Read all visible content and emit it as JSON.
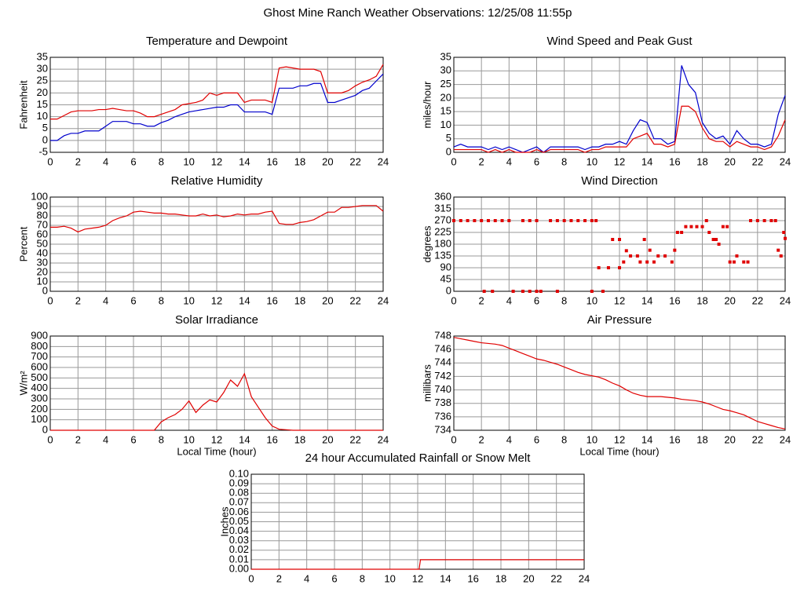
{
  "title": "Ghost Mine Ranch Weather Observations: 12/25/08 11:55p",
  "chart_data": [
    {
      "type": "line",
      "title": "Temperature and Dewpoint",
      "ylabel": "Fahrenheit",
      "grid": true,
      "x": [
        0,
        0.5,
        1,
        1.5,
        2,
        2.5,
        3,
        3.5,
        4,
        4.5,
        5,
        5.5,
        6,
        6.5,
        7,
        7.5,
        8,
        8.5,
        9,
        9.5,
        10,
        10.5,
        11,
        11.5,
        12,
        12.5,
        13,
        13.5,
        14,
        14.5,
        15,
        15.5,
        16,
        16.5,
        17,
        17.5,
        18,
        18.5,
        19,
        19.5,
        20,
        20.5,
        21,
        21.5,
        22,
        22.5,
        23,
        23.5,
        24
      ],
      "series": [
        {
          "color": "#e00000",
          "values": [
            9,
            9,
            10.5,
            12,
            12.5,
            12.5,
            12.5,
            13,
            13,
            13.5,
            13,
            12.5,
            12.5,
            11.5,
            10,
            10,
            11,
            12,
            13,
            15,
            15.5,
            16,
            17,
            20,
            19,
            20,
            20,
            20,
            16,
            17,
            17,
            17,
            16,
            30.5,
            31,
            30.5,
            30,
            30,
            30,
            29,
            20,
            20,
            20,
            21,
            23,
            24.5,
            25.5,
            27,
            32
          ]
        },
        {
          "color": "#0000cc",
          "values": [
            0,
            0,
            2,
            3,
            3,
            4,
            4,
            4,
            6,
            8,
            8,
            8,
            7,
            7,
            6,
            6,
            7.5,
            8.5,
            10,
            11,
            12,
            12.5,
            13,
            13.5,
            14,
            14,
            15,
            15,
            12,
            12,
            12,
            12,
            11,
            22,
            22,
            22,
            23,
            23,
            24,
            24,
            16,
            16,
            17,
            18,
            19,
            21,
            22,
            25,
            28
          ]
        }
      ],
      "xlim": [
        0,
        24
      ],
      "xticks": [
        0,
        2,
        4,
        6,
        8,
        10,
        12,
        14,
        16,
        18,
        20,
        22,
        24
      ],
      "ylim": [
        -5,
        35
      ],
      "yticks": [
        -5,
        0,
        5,
        10,
        15,
        20,
        25,
        30,
        35
      ]
    },
    {
      "type": "line",
      "title": "Wind Speed and Peak Gust",
      "ylabel": "miles/hour",
      "grid": true,
      "x": [
        0,
        0.5,
        1,
        1.5,
        2,
        2.5,
        3,
        3.5,
        4,
        4.5,
        5,
        5.5,
        6,
        6.5,
        7,
        7.5,
        8,
        8.5,
        9,
        9.5,
        10,
        10.5,
        11,
        11.5,
        12,
        12.5,
        13,
        13.5,
        14,
        14.5,
        15,
        15.5,
        16,
        16.5,
        17,
        17.5,
        18,
        18.5,
        19,
        19.5,
        20,
        20.5,
        21,
        21.5,
        22,
        22.5,
        23,
        23.5,
        24
      ],
      "series": [
        {
          "color": "#0000cc",
          "values": [
            2,
            3,
            2,
            2,
            2,
            1,
            2,
            1,
            2,
            1,
            0,
            1,
            2,
            0,
            2,
            2,
            2,
            2,
            2,
            1,
            2,
            2,
            3,
            3,
            4,
            3,
            8,
            12,
            11,
            5,
            5,
            3,
            4,
            32,
            25,
            22,
            11,
            7,
            5,
            6,
            3,
            8,
            5,
            3,
            3,
            2,
            3,
            14,
            21
          ]
        },
        {
          "color": "#e00000",
          "values": [
            1,
            1,
            1,
            1,
            1,
            0,
            1,
            0,
            1,
            0,
            0,
            0,
            1,
            0,
            1,
            1,
            1,
            1,
            1,
            0,
            1,
            1,
            2,
            2,
            2,
            2,
            5,
            6,
            7,
            3,
            3,
            2,
            3,
            17,
            17,
            15,
            9,
            5,
            4,
            4,
            2,
            4,
            3,
            2,
            2,
            1,
            2,
            6,
            12
          ]
        }
      ],
      "xlim": [
        0,
        24
      ],
      "xticks": [
        0,
        2,
        4,
        6,
        8,
        10,
        12,
        14,
        16,
        18,
        20,
        22,
        24
      ],
      "ylim": [
        0,
        35
      ],
      "yticks": [
        0,
        5,
        10,
        15,
        20,
        25,
        30,
        35
      ]
    },
    {
      "type": "line",
      "title": "Relative Humidity",
      "ylabel": "Percent",
      "grid": true,
      "x": [
        0,
        0.5,
        1,
        1.5,
        2,
        2.5,
        3,
        3.5,
        4,
        4.5,
        5,
        5.5,
        6,
        6.5,
        7,
        7.5,
        8,
        8.5,
        9,
        9.5,
        10,
        10.5,
        11,
        11.5,
        12,
        12.5,
        13,
        13.5,
        14,
        14.5,
        15,
        15.5,
        16,
        16.5,
        17,
        17.5,
        18,
        18.5,
        19,
        19.5,
        20,
        20.5,
        21,
        21.5,
        22,
        22.5,
        23,
        23.5,
        24
      ],
      "series": [
        {
          "color": "#e00000",
          "values": [
            68,
            68,
            69,
            67,
            63,
            66,
            67,
            68,
            70,
            75,
            78,
            80,
            84,
            85,
            84,
            83,
            83,
            82,
            82,
            81,
            80,
            80,
            82,
            80,
            81,
            79,
            80,
            82,
            81,
            82,
            82,
            84,
            85,
            72,
            71,
            71,
            73,
            74,
            76,
            80,
            84,
            84,
            89,
            89,
            90,
            91,
            91,
            91,
            85
          ]
        }
      ],
      "xlim": [
        0,
        24
      ],
      "xticks": [
        0,
        2,
        4,
        6,
        8,
        10,
        12,
        14,
        16,
        18,
        20,
        22,
        24
      ],
      "ylim": [
        0,
        100
      ],
      "yticks": [
        0,
        10,
        20,
        30,
        40,
        50,
        60,
        70,
        80,
        90,
        100
      ]
    },
    {
      "type": "scatter",
      "title": "Wind Direction",
      "ylabel": "degrees",
      "grid": true,
      "color": "#e00000",
      "x": [
        0,
        0.5,
        1,
        1.5,
        2,
        2.5,
        3,
        3.5,
        4,
        5,
        5.5,
        6,
        7,
        7.5,
        8,
        8.5,
        9,
        9.5,
        10,
        10.3,
        2.2,
        2.8,
        4.3,
        5,
        5.5,
        6,
        6.3,
        7.5,
        10,
        10.8,
        10.5,
        11.2,
        12,
        11.5,
        12,
        12.3,
        12.5,
        12.8,
        13.3,
        13.5,
        13.8,
        14,
        14.2,
        14.5,
        14.8,
        15.3,
        15.8,
        16,
        16.2,
        16.5,
        16.8,
        17.2,
        17.6,
        18,
        18.3,
        18.5,
        18.8,
        19,
        19.2,
        19.5,
        19.8,
        20,
        20.3,
        20.5,
        21,
        21.3,
        21.5,
        22,
        22.5,
        23,
        23.3,
        23.5,
        23.7,
        24,
        23.9
      ],
      "values": [
        270,
        270,
        270,
        270,
        270,
        270,
        270,
        270,
        270,
        270,
        270,
        270,
        270,
        270,
        270,
        270,
        270,
        270,
        270,
        270,
        0,
        0,
        0,
        0,
        0,
        0,
        0,
        0,
        0,
        0,
        90,
        90,
        90,
        198,
        198,
        112,
        155,
        135,
        135,
        112,
        198,
        112,
        157,
        112,
        135,
        135,
        112,
        157,
        225,
        225,
        247,
        247,
        247,
        247,
        270,
        225,
        198,
        198,
        180,
        247,
        247,
        112,
        112,
        135,
        112,
        112,
        270,
        270,
        270,
        270,
        270,
        157,
        135,
        202,
        225
      ],
      "xlim": [
        0,
        24
      ],
      "xticks": [
        0,
        2,
        4,
        6,
        8,
        10,
        12,
        14,
        16,
        18,
        20,
        22,
        24
      ],
      "ylim": [
        0,
        360
      ],
      "yticks": [
        0,
        45,
        90,
        135,
        180,
        225,
        270,
        315,
        360
      ]
    },
    {
      "type": "line",
      "title": "Solar Irradiance",
      "ylabel": "W/m²",
      "xlabel": "Local Time (hour)",
      "grid": true,
      "x": [
        0,
        0.5,
        1,
        1.5,
        2,
        2.5,
        3,
        3.5,
        4,
        4.5,
        5,
        5.5,
        6,
        6.5,
        7,
        7.5,
        8,
        8.5,
        9,
        9.5,
        10,
        10.5,
        11,
        11.5,
        12,
        12.5,
        13,
        13.5,
        14,
        14.5,
        15,
        15.5,
        16,
        16.5,
        17,
        17.5,
        18,
        18.5,
        19,
        19.5,
        20,
        20.5,
        21,
        21.5,
        22,
        22.5,
        23,
        23.5,
        24
      ],
      "series": [
        {
          "color": "#e00000",
          "values": [
            0,
            0,
            0,
            0,
            0,
            0,
            0,
            0,
            0,
            0,
            0,
            0,
            0,
            0,
            0,
            0,
            80,
            120,
            150,
            200,
            280,
            170,
            240,
            290,
            270,
            360,
            480,
            420,
            540,
            320,
            220,
            120,
            40,
            10,
            5,
            0,
            0,
            0,
            0,
            0,
            0,
            0,
            0,
            0,
            0,
            0,
            0,
            0,
            0
          ]
        }
      ],
      "xlim": [
        0,
        24
      ],
      "xticks": [
        0,
        2,
        4,
        6,
        8,
        10,
        12,
        14,
        16,
        18,
        20,
        22,
        24
      ],
      "ylim": [
        0,
        900
      ],
      "yticks": [
        0,
        100,
        200,
        300,
        400,
        500,
        600,
        700,
        800,
        900
      ]
    },
    {
      "type": "line",
      "title": "Air Pressure",
      "ylabel": "millibars",
      "xlabel": "Local Time (hour)",
      "grid": true,
      "x": [
        0,
        0.5,
        1,
        1.5,
        2,
        2.5,
        3,
        3.5,
        4,
        4.5,
        5,
        5.5,
        6,
        6.5,
        7,
        7.5,
        8,
        8.5,
        9,
        9.5,
        10,
        10.5,
        11,
        11.5,
        12,
        12.5,
        13,
        13.5,
        14,
        14.5,
        15,
        15.5,
        16,
        16.5,
        17,
        17.5,
        18,
        18.5,
        19,
        19.5,
        20,
        20.5,
        21,
        21.5,
        22,
        22.5,
        23,
        23.5,
        24
      ],
      "series": [
        {
          "color": "#e00000",
          "values": [
            747.8,
            747.6,
            747.4,
            747.2,
            747.0,
            746.9,
            746.8,
            746.6,
            746.2,
            745.8,
            745.4,
            745.0,
            744.6,
            744.4,
            744.1,
            743.8,
            743.4,
            743.0,
            742.6,
            742.3,
            742.1,
            741.9,
            741.5,
            741.0,
            740.6,
            740.0,
            739.5,
            739.2,
            739.0,
            739.0,
            739.0,
            738.9,
            738.8,
            738.6,
            738.5,
            738.4,
            738.2,
            737.9,
            737.5,
            737.1,
            736.9,
            736.6,
            736.3,
            735.8,
            735.3,
            735.0,
            734.7,
            734.4,
            734.2
          ]
        }
      ],
      "xlim": [
        0,
        24
      ],
      "xticks": [
        0,
        2,
        4,
        6,
        8,
        10,
        12,
        14,
        16,
        18,
        20,
        22,
        24
      ],
      "ylim": [
        734,
        748
      ],
      "yticks": [
        734,
        736,
        738,
        740,
        742,
        744,
        746,
        748
      ]
    },
    {
      "type": "line",
      "title": "24 hour Accumulated Rainfall or Snow Melt",
      "ylabel": "Inches",
      "grid": true,
      "x": [
        0,
        12.1,
        12.2,
        24
      ],
      "series": [
        {
          "color": "#e00000",
          "values": [
            0,
            0,
            0.01,
            0.01
          ]
        }
      ],
      "xlim": [
        0,
        24
      ],
      "xticks": [
        0,
        2,
        4,
        6,
        8,
        10,
        12,
        14,
        16,
        18,
        20,
        22,
        24
      ],
      "ylim": [
        0,
        0.1
      ],
      "yticks": [
        {
          "value": 0,
          "label": "0.00"
        },
        0.01,
        0.02,
        0.03,
        0.04,
        0.05,
        0.06,
        0.07,
        0.08,
        0.09,
        {
          "value": 0.1,
          "label": "0.10"
        }
      ]
    }
  ]
}
